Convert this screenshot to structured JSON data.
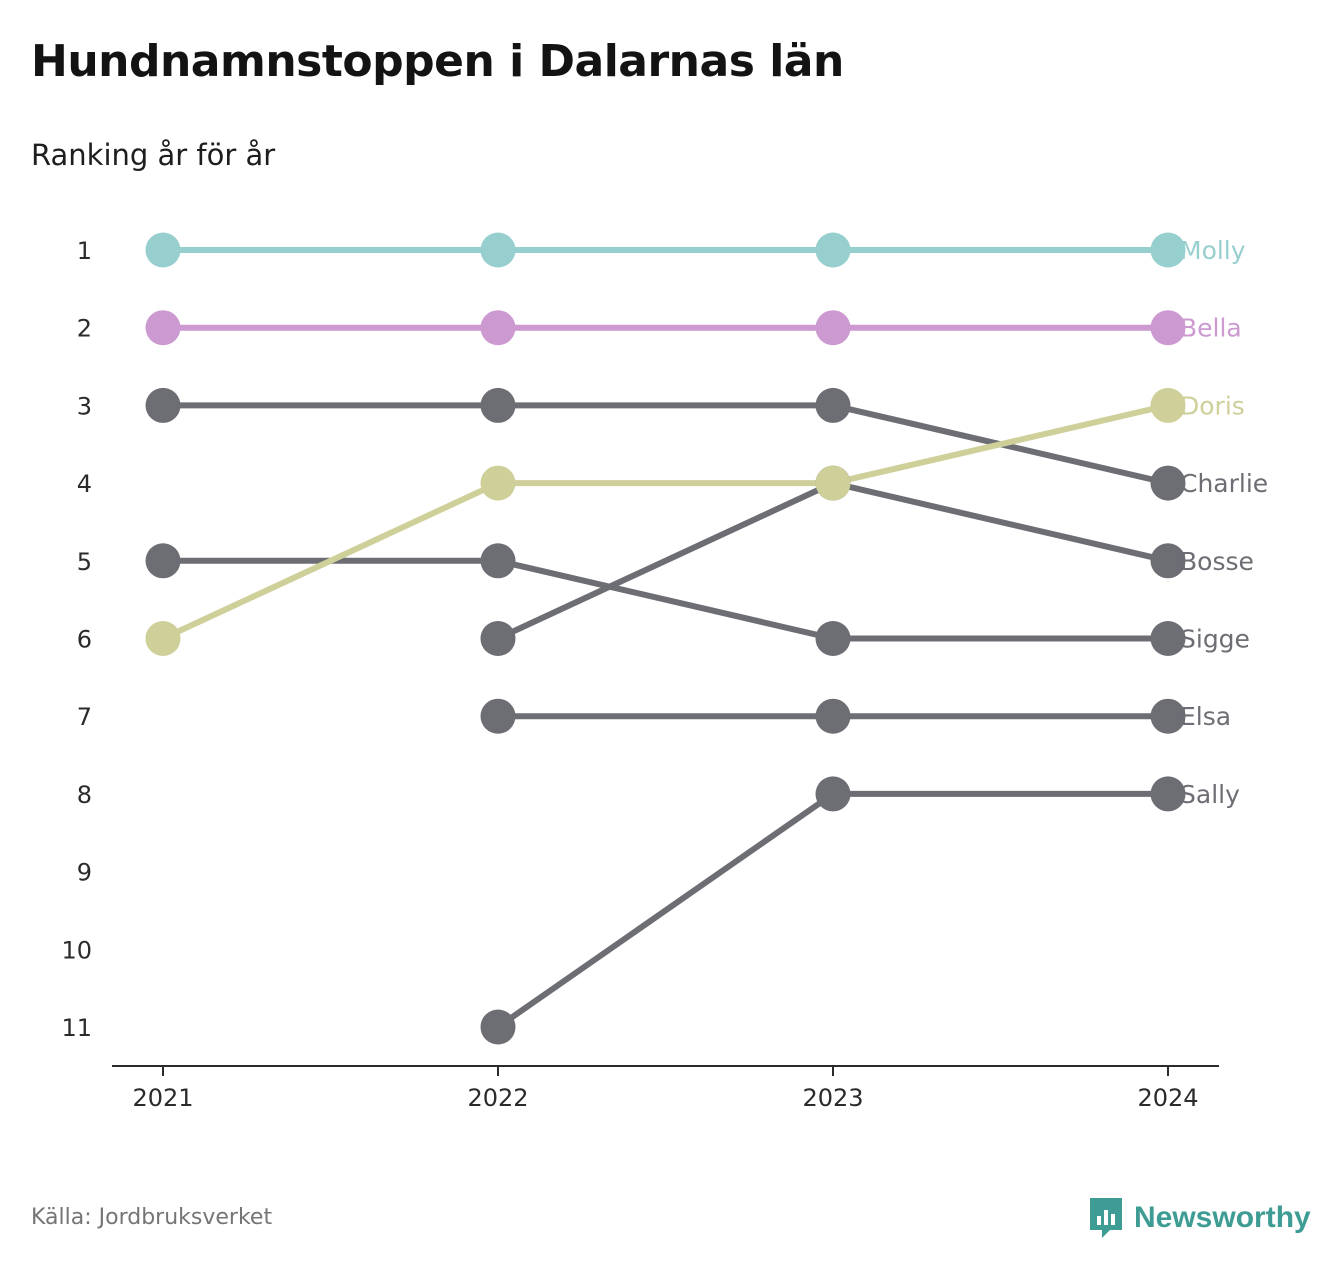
{
  "chart_data": {
    "type": "line",
    "title": "Hundnamnstoppen i Dalarnas län",
    "subtitle": "Ranking år för år",
    "x": [
      "2021",
      "2022",
      "2023",
      "2024"
    ],
    "y_ticks": [
      "1",
      "2",
      "3",
      "4",
      "5",
      "6",
      "7",
      "8",
      "9",
      "10",
      "11"
    ],
    "ylim": [
      1,
      11
    ],
    "y_inverted": true,
    "grid": false,
    "series": [
      {
        "name": "Molly",
        "color": "#97cfcf",
        "values": [
          1,
          1,
          1,
          1
        ]
      },
      {
        "name": "Bella",
        "color": "#cc99d1",
        "values": [
          2,
          2,
          2,
          2
        ]
      },
      {
        "name": "Charlie",
        "color": "#6d6d74",
        "values": [
          3,
          3,
          3,
          4
        ]
      },
      {
        "name": "Bosse",
        "color": "#6d6d74",
        "values": [
          null,
          6,
          4,
          5
        ]
      },
      {
        "name": "Sigge",
        "color": "#6d6d74",
        "values": [
          5,
          5,
          6,
          6
        ]
      },
      {
        "name": "Elsa",
        "color": "#6d6d74",
        "values": [
          null,
          7,
          7,
          7
        ]
      },
      {
        "name": "Sally",
        "color": "#6d6d74",
        "values": [
          null,
          11,
          8,
          8
        ]
      },
      {
        "name": "Doris",
        "color": "#cfcf9a",
        "values": [
          6,
          4,
          4,
          3
        ]
      }
    ]
  },
  "footer": {
    "source": "Källa: Jordbruksverket",
    "brand": "Newsworthy",
    "brand_color": "#3e9c94"
  }
}
